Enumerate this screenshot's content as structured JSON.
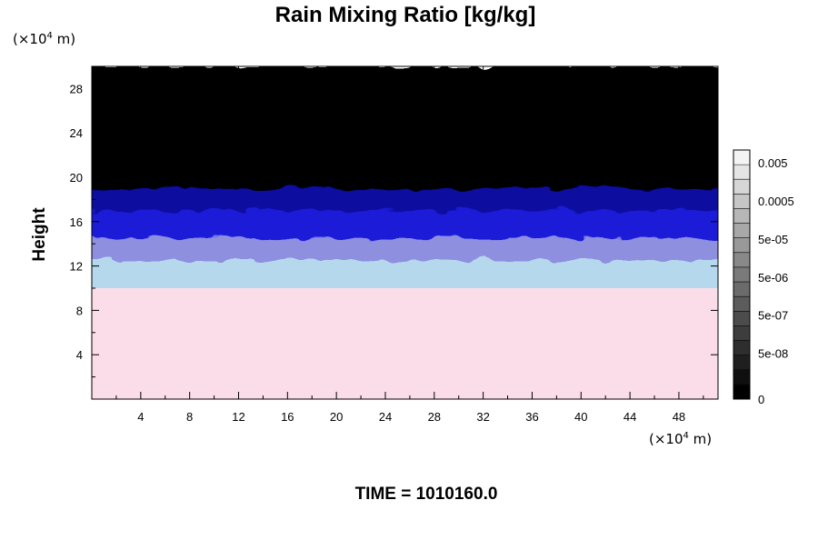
{
  "chart_data": {
    "type": "heatmap",
    "title": "Rain Mixing Ratio [kg/kg]",
    "ylabel": "Height",
    "y_unit_prefix": "(×10",
    "y_unit_exp": "4",
    "y_unit_suffix": " m)",
    "x_unit_prefix": "(×10",
    "x_unit_exp": "4",
    "x_unit_suffix": " m)",
    "xlim": [
      0,
      51.2
    ],
    "ylim": [
      0,
      30
    ],
    "x_ticks": [
      4,
      8,
      12,
      16,
      20,
      24,
      28,
      32,
      36,
      40,
      44,
      48
    ],
    "x_tick_labels": [
      "4",
      "8",
      "12",
      "16",
      "20",
      "24",
      "28",
      "32",
      "36",
      "40",
      "44",
      "48"
    ],
    "y_ticks": [
      4,
      8,
      12,
      16,
      20,
      24,
      28
    ],
    "y_tick_labels": [
      "4",
      "8",
      "12",
      "16",
      "20",
      "24",
      "28"
    ],
    "layers": [
      {
        "from": 0,
        "to": 10,
        "color": "#fbdde9"
      },
      {
        "from": 10,
        "to": 12.5,
        "color": "#b6d8ec"
      },
      {
        "from": 12.5,
        "to": 14.5,
        "color": "#8f8fe0"
      },
      {
        "from": 14.5,
        "to": 17,
        "color": "#1c1cd8"
      },
      {
        "from": 17,
        "to": 19,
        "color": "#0a0aa0"
      },
      {
        "from": 19,
        "to": 30,
        "color": "#000000"
      }
    ],
    "colorbar": {
      "labels": [
        "0.005",
        "0.0005",
        "5e-05",
        "5e-06",
        "5e-07",
        "5e-08",
        "0"
      ],
      "n_levels": 17,
      "color_low": "#000000",
      "color_high": "#f4f4f4"
    },
    "annotation": "TIME = 1010160.0"
  }
}
